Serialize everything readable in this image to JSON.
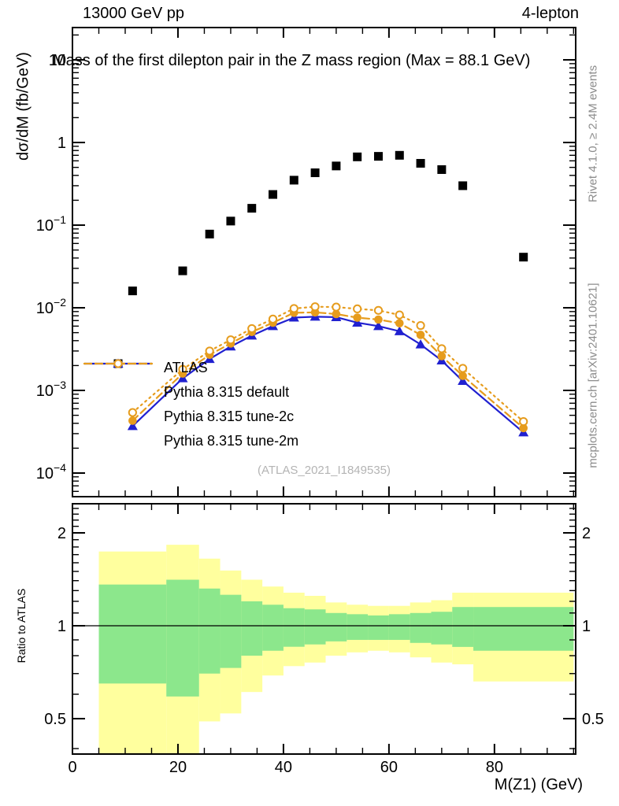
{
  "header": {
    "left": "13000 GeV pp",
    "right": "4-lepton"
  },
  "title": "Mass of the first dilepton pair in the Z mass region (Max = 88.1 GeV)",
  "side_notes": {
    "top_right": "Rivet 4.1.0, ≥ 2.4M events",
    "bottom_right": "mcplots.cern.ch [arXiv:2401.10621]"
  },
  "watermark": "(ATLAS_2021_I1849535)",
  "colors": {
    "atlas": "#000000",
    "pythia_default_blue": "#2020d0",
    "pythia_tune_orange": "#e69c1d",
    "band_yellow": "#ffff9e",
    "band_green": "#8ce78c",
    "gray_note": "#8c8c8c",
    "gray_watermark": "#b4b4b4"
  },
  "chart_data": [
    {
      "id": "main",
      "type": "line",
      "title": "Mass of the first dilepton pair in the Z mass region (Max = 88.1 GeV)",
      "xlabel": "",
      "ylabel": "dσ/dM (fb/GeV)",
      "yscale": "log",
      "xlim": [
        0,
        95.4
      ],
      "ylim": [
        5.18e-05,
        24.6
      ],
      "grid": false,
      "legend_position": "center-left",
      "x": [
        11.4,
        20.9,
        26,
        30,
        34,
        38,
        42,
        46,
        50,
        54,
        58,
        62,
        66,
        70,
        74,
        85.5
      ],
      "yticks": {
        "values": [
          10,
          1,
          0.1,
          0.01,
          0.001,
          0.0001
        ],
        "labels": [
          {
            "base": "10",
            "exp": ""
          },
          {
            "base": "1",
            "exp": ""
          },
          {
            "base": "10",
            "exp": "−1"
          },
          {
            "base": "10",
            "exp": "−2"
          },
          {
            "base": "10",
            "exp": "−3"
          },
          {
            "base": "10",
            "exp": "−4"
          }
        ]
      },
      "series": [
        {
          "name": "ATLAS",
          "color": "#000000",
          "marker": "square",
          "line": "none",
          "values": [
            0.016,
            0.028,
            0.078,
            0.112,
            0.16,
            0.235,
            0.35,
            0.43,
            0.52,
            0.67,
            0.68,
            0.7,
            0.56,
            0.47,
            0.3,
            0.041
          ]
        },
        {
          "name": "Pythia 8.315 default",
          "color": "#2020d0",
          "marker": "triangle",
          "line": "solid",
          "values": [
            0.00037,
            0.0014,
            0.0024,
            0.0034,
            0.0046,
            0.006,
            0.0076,
            0.0078,
            0.0077,
            0.0066,
            0.006,
            0.0052,
            0.0036,
            0.0023,
            0.0013,
            0.00031
          ]
        },
        {
          "name": "Pythia 8.315 tune-2c",
          "color": "#e69c1d",
          "marker": "circle",
          "line": "dashed",
          "values": [
            0.00043,
            0.0016,
            0.0027,
            0.0037,
            0.0051,
            0.0066,
            0.0087,
            0.0088,
            0.0084,
            0.0076,
            0.0072,
            0.0065,
            0.0047,
            0.0026,
            0.0015,
            0.00035
          ]
        },
        {
          "name": "Pythia 8.315 tune-2m",
          "color": "#e69c1d",
          "marker": "open-circle",
          "line": "dotted",
          "values": [
            0.00054,
            0.0018,
            0.003,
            0.0041,
            0.0056,
            0.0073,
            0.0098,
            0.0103,
            0.0102,
            0.0097,
            0.0093,
            0.0082,
            0.0061,
            0.0032,
            0.00185,
            0.00042
          ]
        }
      ]
    },
    {
      "id": "ratio",
      "type": "band",
      "xlabel": "M(Z1) (GeV)",
      "ylabel": "Ratio to ATLAS",
      "yscale": "log",
      "xlim": [
        0,
        95.4
      ],
      "ylim": [
        0.384,
        2.485
      ],
      "xticks": [
        0,
        20,
        40,
        60,
        80
      ],
      "x_minor_step": 5,
      "yticks": [
        0.5,
        1,
        2
      ],
      "reference_line": 1,
      "bin_edges": [
        5,
        17.8,
        24,
        28,
        32,
        36,
        40,
        44,
        48,
        52,
        56,
        60,
        64,
        68,
        72,
        76,
        95
      ],
      "bands": [
        {
          "name": "total-uncertainty",
          "color": "#ffff9e",
          "lo": [
            0.36,
            0.36,
            0.49,
            0.52,
            0.61,
            0.69,
            0.74,
            0.76,
            0.8,
            0.82,
            0.83,
            0.82,
            0.79,
            0.76,
            0.75,
            0.66
          ],
          "hi": [
            1.74,
            1.83,
            1.65,
            1.51,
            1.41,
            1.34,
            1.28,
            1.25,
            1.19,
            1.17,
            1.16,
            1.16,
            1.19,
            1.21,
            1.28,
            1.28
          ]
        },
        {
          "name": "stat-uncertainty",
          "color": "#8ce78c",
          "lo": [
            0.65,
            0.59,
            0.7,
            0.73,
            0.8,
            0.83,
            0.855,
            0.87,
            0.89,
            0.9,
            0.9,
            0.9,
            0.88,
            0.87,
            0.854,
            0.83
          ],
          "hi": [
            1.36,
            1.41,
            1.32,
            1.26,
            1.2,
            1.17,
            1.14,
            1.13,
            1.1,
            1.09,
            1.08,
            1.09,
            1.1,
            1.11,
            1.15,
            1.15
          ]
        }
      ]
    }
  ]
}
